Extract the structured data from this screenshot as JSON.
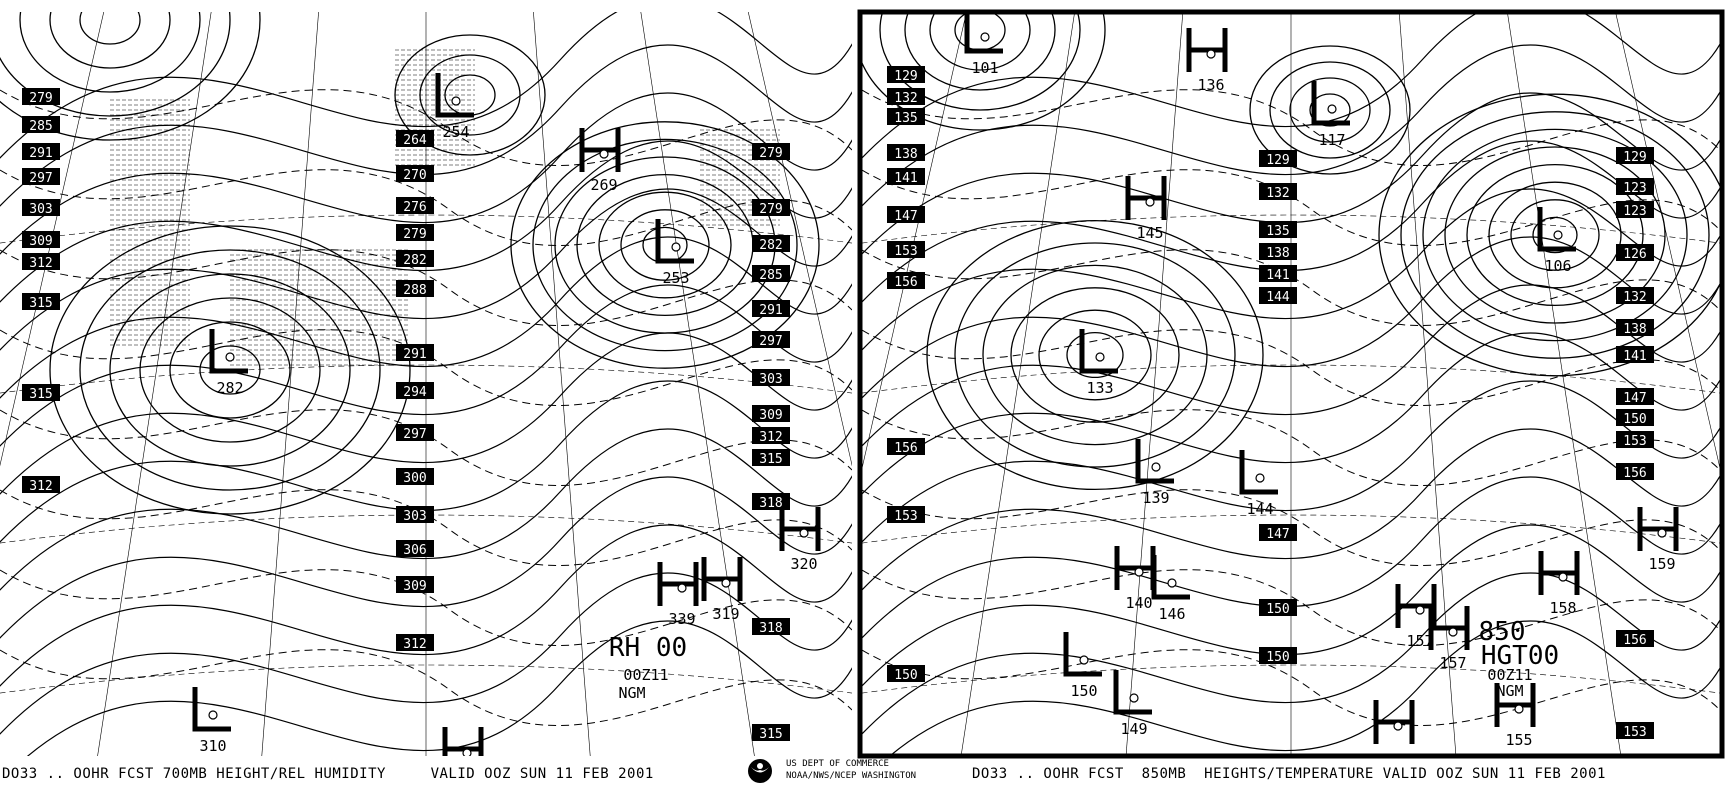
{
  "colors": {
    "ink": "#000000",
    "background": "#ffffff"
  },
  "left_panel": {
    "caption": "DO33 .. OOHR FCST 700MB HEIGHT/REL HUMIDITY     VALID OOZ SUN 11 FEB 2001",
    "annotation": {
      "field": "RH 00",
      "time": "00Z11",
      "model": "NGM"
    },
    "height_labels_left": [
      "279",
      "285",
      "291",
      "297",
      "303",
      "309",
      "312",
      "315",
      "315",
      "312"
    ],
    "height_labels_mid": [
      "264",
      "270",
      "276",
      "279",
      "282",
      "288",
      "291",
      "294",
      "297",
      "300",
      "303",
      "306",
      "309",
      "312"
    ],
    "height_labels_right": [
      "279",
      "279",
      "282",
      "285",
      "291",
      "297",
      "303",
      "309",
      "312",
      "315",
      "318",
      "318",
      "315"
    ],
    "centers": [
      {
        "type": "L",
        "value": "254"
      },
      {
        "type": "H",
        "value": "269"
      },
      {
        "type": "L",
        "value": "253"
      },
      {
        "type": "L",
        "value": "282"
      },
      {
        "type": "H",
        "value": "319"
      },
      {
        "type": "H",
        "value": "320"
      },
      {
        "type": "H",
        "value": "339"
      },
      {
        "type": "L",
        "value": "310"
      },
      {
        "type": "H",
        "value": ""
      }
    ]
  },
  "right_panel": {
    "caption": "DO33 .. OOHR FCST  850MB  HEIGHTS/TEMPERATURE VALID OOZ SUN 11 FEB 2001",
    "annotation": {
      "level": "850",
      "field": "HGT00",
      "time": "00Z11",
      "model": "NGM"
    },
    "height_labels_left": [
      "129",
      "132",
      "135",
      "138",
      "141",
      "147",
      "153",
      "156",
      "156",
      "153",
      "150"
    ],
    "height_labels_mid": [
      "129",
      "132",
      "135",
      "138",
      "141",
      "144",
      "147",
      "150",
      "150"
    ],
    "height_labels_right": [
      "129",
      "123",
      "123",
      "126",
      "132",
      "138",
      "141",
      "147",
      "150",
      "153",
      "156",
      "156",
      "153"
    ],
    "centers": [
      {
        "type": "L",
        "value": "101"
      },
      {
        "type": "H",
        "value": "136"
      },
      {
        "type": "L",
        "value": "117"
      },
      {
        "type": "H",
        "value": "145"
      },
      {
        "type": "L",
        "value": "106"
      },
      {
        "type": "L",
        "value": "133"
      },
      {
        "type": "L",
        "value": "139"
      },
      {
        "type": "L",
        "value": "144"
      },
      {
        "type": "H",
        "value": "140"
      },
      {
        "type": "L",
        "value": "146"
      },
      {
        "type": "L",
        "value": "150"
      },
      {
        "type": "L",
        "value": "149"
      },
      {
        "type": "H",
        "value": "158"
      },
      {
        "type": "H",
        "value": "159"
      },
      {
        "type": "H",
        "value": "157"
      },
      {
        "type": "H",
        "value": "157"
      },
      {
        "type": "H",
        "value": "155"
      },
      {
        "type": "H",
        "value": ""
      }
    ]
  },
  "agency": {
    "line1": "US DEPT OF COMMERCE",
    "line2": "NOAA/NWS/NCEP WASHINGTON"
  },
  "logo_icon": "noaa-logo-icon"
}
